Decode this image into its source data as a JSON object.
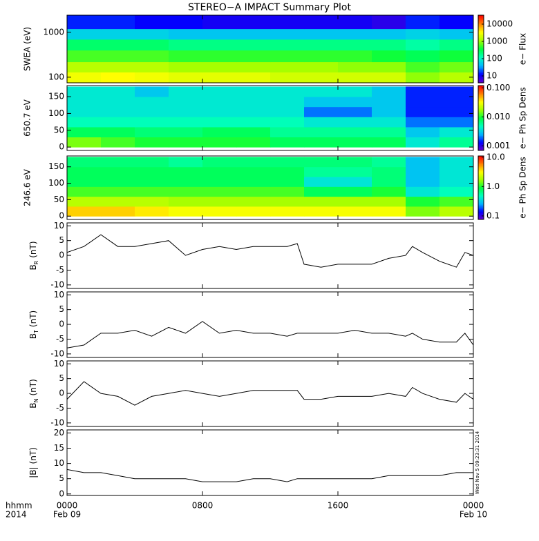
{
  "chart_data": [
    {
      "type": "heatmap",
      "title": "STEREO−A IMPACT Summary Plot",
      "ylabel": "SWEA (eV)",
      "ylog": true,
      "ylim": [
        75,
        2400
      ],
      "yticks": [
        100,
        1000
      ],
      "x_edges": [
        0,
        2,
        4,
        6,
        8,
        10,
        12,
        14,
        16,
        18,
        20,
        22,
        24
      ],
      "y_edges": [
        75,
        130,
        220,
        400,
        700,
        1200,
        2400
      ],
      "z": [
        [
          3000,
          3500,
          3000,
          2500,
          2500,
          2500,
          2000,
          2000,
          2000,
          2000,
          1000,
          1500
        ],
        [
          1500,
          1500,
          1500,
          1200,
          1200,
          1200,
          1200,
          1200,
          1000,
          1000,
          600,
          800
        ],
        [
          600,
          600,
          600,
          500,
          500,
          500,
          500,
          500,
          500,
          400,
          300,
          400
        ],
        [
          250,
          250,
          250,
          200,
          200,
          200,
          200,
          200,
          200,
          200,
          150,
          200
        ],
        [
          60,
          60,
          60,
          50,
          50,
          50,
          50,
          50,
          50,
          50,
          60,
          50
        ],
        [
          15,
          15,
          12,
          12,
          10,
          10,
          10,
          10,
          10,
          8,
          15,
          12
        ]
      ],
      "zlog": true,
      "zlim": [
        4,
        33000
      ],
      "zticks": [
        10,
        100,
        1000,
        10000
      ],
      "zlabel": "e− Flux",
      "colormap": [
        "#6a00c8",
        "#0000ff",
        "#00b4ff",
        "#00ffc0",
        "#00ff40",
        "#a0ff00",
        "#ffff00",
        "#ff8000",
        "#ff0000"
      ]
    },
    {
      "type": "heatmap",
      "ylabel": "650.7 eV",
      "ylim": [
        -10,
        183
      ],
      "yticks": [
        0,
        50,
        100,
        150
      ],
      "x_edges": [
        0,
        2,
        4,
        6,
        8,
        10,
        12,
        14,
        16,
        18,
        20,
        22,
        24
      ],
      "y_edges": [
        0,
        30,
        60,
        90,
        120,
        150,
        180
      ],
      "z": [
        [
          0.015,
          0.012,
          0.01,
          0.01,
          0.01,
          0.01,
          0.008,
          0.008,
          0.008,
          0.008,
          0.004,
          0.006
        ],
        [
          0.008,
          0.008,
          0.007,
          0.007,
          0.008,
          0.008,
          0.006,
          0.006,
          0.006,
          0.006,
          0.003,
          0.004
        ],
        [
          0.005,
          0.005,
          0.005,
          0.005,
          0.005,
          0.005,
          0.005,
          0.004,
          0.004,
          0.004,
          0.002,
          0.002
        ],
        [
          0.004,
          0.004,
          0.004,
          0.004,
          0.004,
          0.004,
          0.004,
          0.002,
          0.002,
          0.003,
          0.0015,
          0.0015
        ],
        [
          0.004,
          0.004,
          0.004,
          0.004,
          0.004,
          0.004,
          0.004,
          0.003,
          0.003,
          0.003,
          0.0015,
          0.0015
        ],
        [
          0.004,
          0.004,
          0.003,
          0.004,
          0.004,
          0.004,
          0.004,
          0.004,
          0.004,
          0.003,
          0.0015,
          0.0015
        ]
      ],
      "zlog": true,
      "zlim": [
        0.0007,
        0.12
      ],
      "zticks": [
        {
          "value": 0.001,
          "label": "0.001"
        },
        {
          "value": 0.01,
          "label": "0.010"
        },
        {
          "value": 0.1,
          "label": "0.100"
        }
      ],
      "zlabel": "e− Ph Sp Dens"
    },
    {
      "type": "heatmap",
      "ylabel": "246.6 eV",
      "ylim": [
        -10,
        183
      ],
      "yticks": [
        0,
        50,
        100,
        150
      ],
      "x_edges": [
        0,
        2,
        4,
        6,
        8,
        10,
        12,
        14,
        16,
        18,
        20,
        22,
        24
      ],
      "y_edges": [
        0,
        30,
        60,
        90,
        120,
        150,
        180
      ],
      "z": [
        [
          4,
          4,
          3.5,
          3,
          3,
          3,
          3,
          3,
          3,
          3,
          1.5,
          2
        ],
        [
          2,
          2,
          2,
          1.8,
          1.8,
          1.8,
          1.8,
          1.8,
          1.8,
          1.8,
          1,
          1.2
        ],
        [
          1.2,
          1.2,
          1.2,
          1.2,
          1.2,
          1.2,
          1.2,
          0.8,
          0.8,
          1,
          0.4,
          0.5
        ],
        [
          0.8,
          0.8,
          0.8,
          0.8,
          0.8,
          0.8,
          0.8,
          0.4,
          0.4,
          0.7,
          0.3,
          0.4
        ],
        [
          0.8,
          0.8,
          0.8,
          0.8,
          0.8,
          0.8,
          0.8,
          0.6,
          0.6,
          0.7,
          0.3,
          0.4
        ],
        [
          0.7,
          0.7,
          0.7,
          0.6,
          0.7,
          0.7,
          0.7,
          0.7,
          0.7,
          0.6,
          0.3,
          0.4
        ]
      ],
      "zlog": true,
      "zlim": [
        0.076,
        11
      ],
      "zticks": [
        {
          "value": 0.1,
          "label": "0.1"
        },
        {
          "value": 1,
          "label": "1.0"
        },
        {
          "value": 10,
          "label": "10.0"
        }
      ],
      "zlabel": "e− Ph Sp Dens"
    },
    {
      "type": "line",
      "ylabel": "B",
      "ylabel_sub": "R",
      "ylabel_unit": "(nT)",
      "ylim": [
        -11.2,
        11
      ],
      "yticks": [
        -10,
        -5,
        0,
        5,
        10
      ],
      "x": [
        0,
        1,
        2,
        3,
        4,
        5,
        6,
        7,
        8,
        9,
        10,
        11,
        12,
        13,
        13.6,
        14,
        15,
        16,
        17,
        18,
        19,
        20,
        20.4,
        21,
        22,
        23,
        23.5,
        24
      ],
      "series": [
        {
          "color": "#000000",
          "values": [
            1,
            3,
            7,
            3,
            3,
            4,
            5,
            0,
            2,
            3,
            2,
            3,
            3,
            3,
            4,
            -3,
            -4,
            -3,
            -3,
            -3,
            -1,
            0,
            3,
            1,
            -2,
            -4,
            1,
            0
          ]
        }
      ]
    },
    {
      "type": "line",
      "ylabel": "B",
      "ylabel_sub": "T",
      "ylabel_unit": "(nT)",
      "ylim": [
        -11.2,
        11
      ],
      "yticks": [
        -10,
        -5,
        0,
        5,
        10
      ],
      "x": [
        0,
        1,
        2,
        3,
        4,
        5,
        6,
        7,
        8,
        9,
        10,
        11,
        12,
        13,
        13.6,
        14,
        15,
        16,
        17,
        18,
        19,
        20,
        20.4,
        21,
        22,
        23,
        23.5,
        24
      ],
      "series": [
        {
          "color": "#000000",
          "values": [
            -8,
            -7,
            -3,
            -3,
            -2,
            -4,
            -1,
            -3,
            1,
            -3,
            -2,
            -3,
            -3,
            -4,
            -3,
            -3,
            -3,
            -3,
            -2,
            -3,
            -3,
            -4,
            -3,
            -5,
            -6,
            -6,
            -3,
            -7
          ]
        }
      ]
    },
    {
      "type": "line",
      "ylabel": "B",
      "ylabel_sub": "N",
      "ylabel_unit": "(nT)",
      "ylim": [
        -11.2,
        11
      ],
      "yticks": [
        -10,
        -5,
        0,
        5,
        10
      ],
      "x": [
        0,
        1,
        2,
        3,
        4,
        5,
        6,
        7,
        8,
        9,
        10,
        11,
        12,
        13,
        13.6,
        14,
        15,
        16,
        17,
        18,
        19,
        20,
        20.4,
        21,
        22,
        23,
        23.5,
        24
      ],
      "series": [
        {
          "color": "#000000",
          "values": [
            -2,
            4,
            0,
            -1,
            -4,
            -1,
            0,
            1,
            0,
            -1,
            0,
            1,
            1,
            1,
            1,
            -2,
            -2,
            -1,
            -1,
            -1,
            0,
            -1,
            2,
            0,
            -2,
            -3,
            0,
            -2
          ]
        }
      ]
    },
    {
      "type": "line",
      "ylabel": "|B|",
      "ylabel_unit": "(nT)",
      "ylim": [
        -0.5,
        21
      ],
      "yticks": [
        0,
        5,
        10,
        15,
        20
      ],
      "x": [
        0,
        1,
        2,
        3,
        4,
        5,
        6,
        7,
        8,
        9,
        10,
        11,
        12,
        13,
        13.6,
        14,
        15,
        16,
        17,
        18,
        19,
        20,
        20.4,
        21,
        22,
        23,
        23.5,
        24
      ],
      "series": [
        {
          "color": "#000000",
          "values": [
            8,
            7,
            7,
            6,
            5,
            5,
            5,
            5,
            4,
            4,
            4,
            5,
            5,
            4,
            5,
            5,
            5,
            5,
            5,
            5,
            6,
            6,
            6,
            6,
            6,
            7,
            7,
            7
          ]
        }
      ],
      "xlim": [
        0,
        24
      ],
      "xticks": [
        {
          "value": 0,
          "label": "0000"
        },
        {
          "value": 8,
          "label": "0800"
        },
        {
          "value": 16,
          "label": "1600"
        },
        {
          "value": 24,
          "label": "0000"
        }
      ],
      "xtick_dates": [
        {
          "value": 0,
          "label": "Feb 09"
        },
        {
          "value": 24,
          "label": "Feb 10"
        }
      ],
      "x_header": [
        "hhmm",
        "2014"
      ],
      "timestamp": "Wed Nov  5 09:23:31 2014"
    }
  ]
}
